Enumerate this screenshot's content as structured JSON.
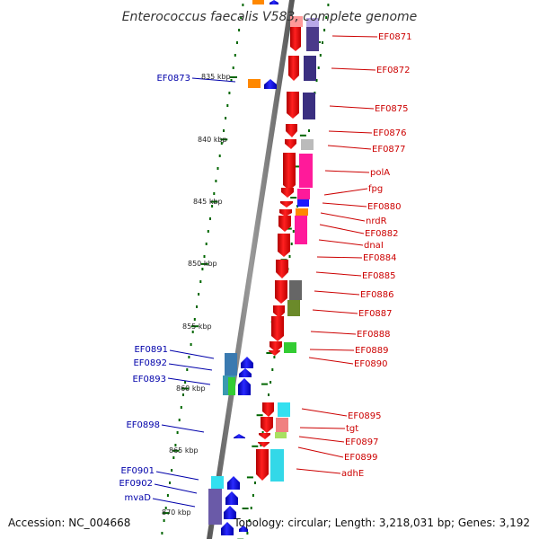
{
  "title": "Enterococcus faecalis V583, complete genome",
  "accession": "Accession: NC_004668",
  "summary": "Topology: circular; Length: 3,218,031 bp; Genes: 3,192",
  "ticks": [
    "835 kbp",
    "840 kbp",
    "845 kbp",
    "850 kbp",
    "855 kbp",
    "860 kbp",
    "865 kbp",
    "870 kbp"
  ],
  "right_strand_labels": [
    "EF0871",
    "EF0872",
    "EF0875",
    "EF0876",
    "EF0877",
    "polA",
    "fpg",
    "EF0880",
    "nrdR",
    "EF0882",
    "dnaI",
    "EF0884",
    "EF0885",
    "EF0886",
    "EF0887",
    "EF0888",
    "EF0889",
    "EF0890",
    "EF0895",
    "tgt",
    "EF0897",
    "EF0899",
    "adhE"
  ],
  "left_strand_labels": [
    "EF0873",
    "EF0891",
    "EF0892",
    "EF0893",
    "EF0898",
    "EF0901",
    "EF0902",
    "mvaD"
  ],
  "colors": {
    "forward_gene": "#ff0000",
    "reverse_gene": "#0000ff",
    "backbone": "#777777",
    "tick": "#006600",
    "right_label": "#cc0000",
    "left_label": "#0000aa"
  }
}
